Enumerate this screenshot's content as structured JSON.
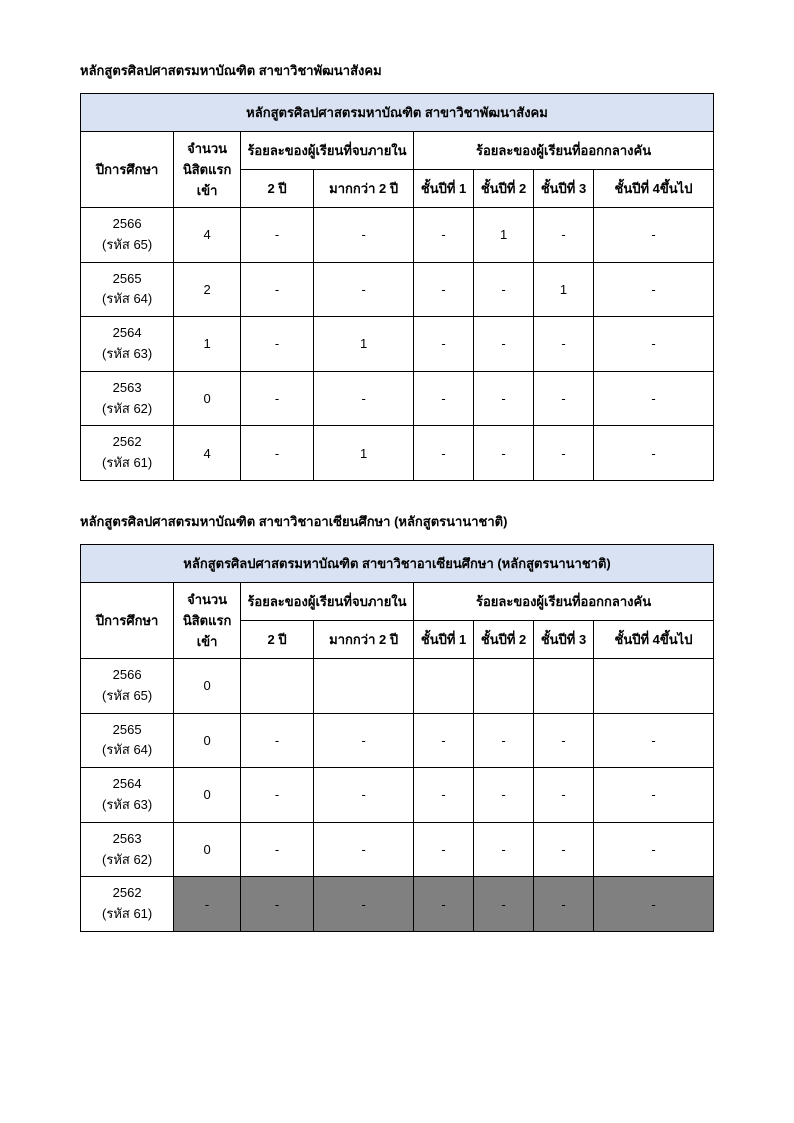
{
  "tables": [
    {
      "section_title": "หลักสูตรศิลปศาสตรมหาบัณฑิต สาขาวิชาพัฒนาสังคม",
      "header_title": "หลักสูตรศิลปศาสตรมหาบัณฑิต สาขาวิชาพัฒนาสังคม",
      "col_year": "ปีการศึกษา",
      "col_count": "จำนวนนิสิตแรกเข้า",
      "col_grad_group": "ร้อยละของผู้เรียนที่จบภายใน",
      "col_drop_group": "ร้อยละของผู้เรียนที่ออกกลางคัน",
      "col_2y": "2 ปี",
      "col_more2y": "มากกว่า 2 ปี",
      "col_y1": "ชั้นปีที่ 1",
      "col_y2": "ชั้นปีที่ 2",
      "col_y3": "ชั้นปีที่ 3",
      "col_y4": "ชั้นปีที่ 4ขึ้นไป",
      "rows": [
        {
          "year": "2566",
          "code": "(รหัส 65)",
          "count": "4",
          "g2y": "-",
          "gmore": "-",
          "d1": "-",
          "d2": "1",
          "d3": "-",
          "d4": "-",
          "shaded": false
        },
        {
          "year": "2565",
          "code": "(รหัส 64)",
          "count": "2",
          "g2y": "-",
          "gmore": "-",
          "d1": "-",
          "d2": "-",
          "d3": "1",
          "d4": "-",
          "shaded": false
        },
        {
          "year": "2564",
          "code": "(รหัส 63)",
          "count": "1",
          "g2y": "-",
          "gmore": "1",
          "d1": "-",
          "d2": "-",
          "d3": "-",
          "d4": "-",
          "shaded": false
        },
        {
          "year": "2563",
          "code": "(รหัส 62)",
          "count": "0",
          "g2y": "-",
          "gmore": "-",
          "d1": "-",
          "d2": "-",
          "d3": "-",
          "d4": "-",
          "shaded": false
        },
        {
          "year": "2562",
          "code": "(รหัส 61)",
          "count": "4",
          "g2y": "-",
          "gmore": "1",
          "d1": "-",
          "d2": "-",
          "d3": "-",
          "d4": "-",
          "shaded": false
        }
      ]
    },
    {
      "section_title": "หลักสูตรศิลปศาสตรมหาบัณฑิต สาขาวิชาอาเซียนศึกษา (หลักสูตรนานาชาติ)",
      "header_title": "หลักสูตรศิลปศาสตรมหาบัณฑิต สาขาวิชาอาเซียนศึกษา (หลักสูตรนานาชาติ)",
      "col_year": "ปีการศึกษา",
      "col_count": "จำนวนนิสิตแรกเข้า",
      "col_grad_group": "ร้อยละของผู้เรียนที่จบภายใน",
      "col_drop_group": "ร้อยละของผู้เรียนที่ออกกลางคัน",
      "col_2y": "2 ปี",
      "col_more2y": "มากกว่า 2 ปี",
      "col_y1": "ชั้นปีที่ 1",
      "col_y2": "ชั้นปีที่ 2",
      "col_y3": "ชั้นปีที่ 3",
      "col_y4": "ชั้นปีที่ 4ขึ้นไป",
      "rows": [
        {
          "year": "2566",
          "code": "(รหัส 65)",
          "count": "0",
          "g2y": "",
          "gmore": "",
          "d1": "",
          "d2": "",
          "d3": "",
          "d4": "",
          "shaded": false
        },
        {
          "year": "2565",
          "code": "(รหัส 64)",
          "count": "0",
          "g2y": "-",
          "gmore": "-",
          "d1": "-",
          "d2": "-",
          "d3": "-",
          "d4": "-",
          "shaded": false
        },
        {
          "year": "2564",
          "code": "(รหัส 63)",
          "count": "0",
          "g2y": "-",
          "gmore": "-",
          "d1": "-",
          "d2": "-",
          "d3": "-",
          "d4": "-",
          "shaded": false
        },
        {
          "year": "2563",
          "code": "(รหัส 62)",
          "count": "0",
          "g2y": "-",
          "gmore": "-",
          "d1": "-",
          "d2": "-",
          "d3": "-",
          "d4": "-",
          "shaded": false
        },
        {
          "year": "2562",
          "code": "(รหัส 61)",
          "count": "-",
          "g2y": "-",
          "gmore": "-",
          "d1": "-",
          "d2": "-",
          "d3": "-",
          "d4": "-",
          "shaded": true
        }
      ]
    }
  ],
  "colors": {
    "header_bg": "#d9e2f3",
    "shaded_bg": "#808080",
    "border": "#000000",
    "text": "#000000",
    "page_bg": "#ffffff"
  }
}
